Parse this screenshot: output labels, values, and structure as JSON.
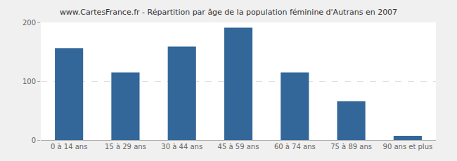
{
  "chart_data": {
    "type": "bar",
    "title": "www.CartesFrance.fr - Répartition par âge de la population féminine d'Autrans en 2007",
    "categories": [
      "0 à 14 ans",
      "15 à 29 ans",
      "30 à 44 ans",
      "45 à 59 ans",
      "60 à 74 ans",
      "75 à 89 ans",
      "90 ans et plus"
    ],
    "values": [
      156,
      115,
      159,
      191,
      115,
      66,
      7
    ],
    "color": "#336699",
    "ylim": [
      0,
      200
    ],
    "yticks": [
      0,
      100,
      200
    ],
    "grid": true
  }
}
